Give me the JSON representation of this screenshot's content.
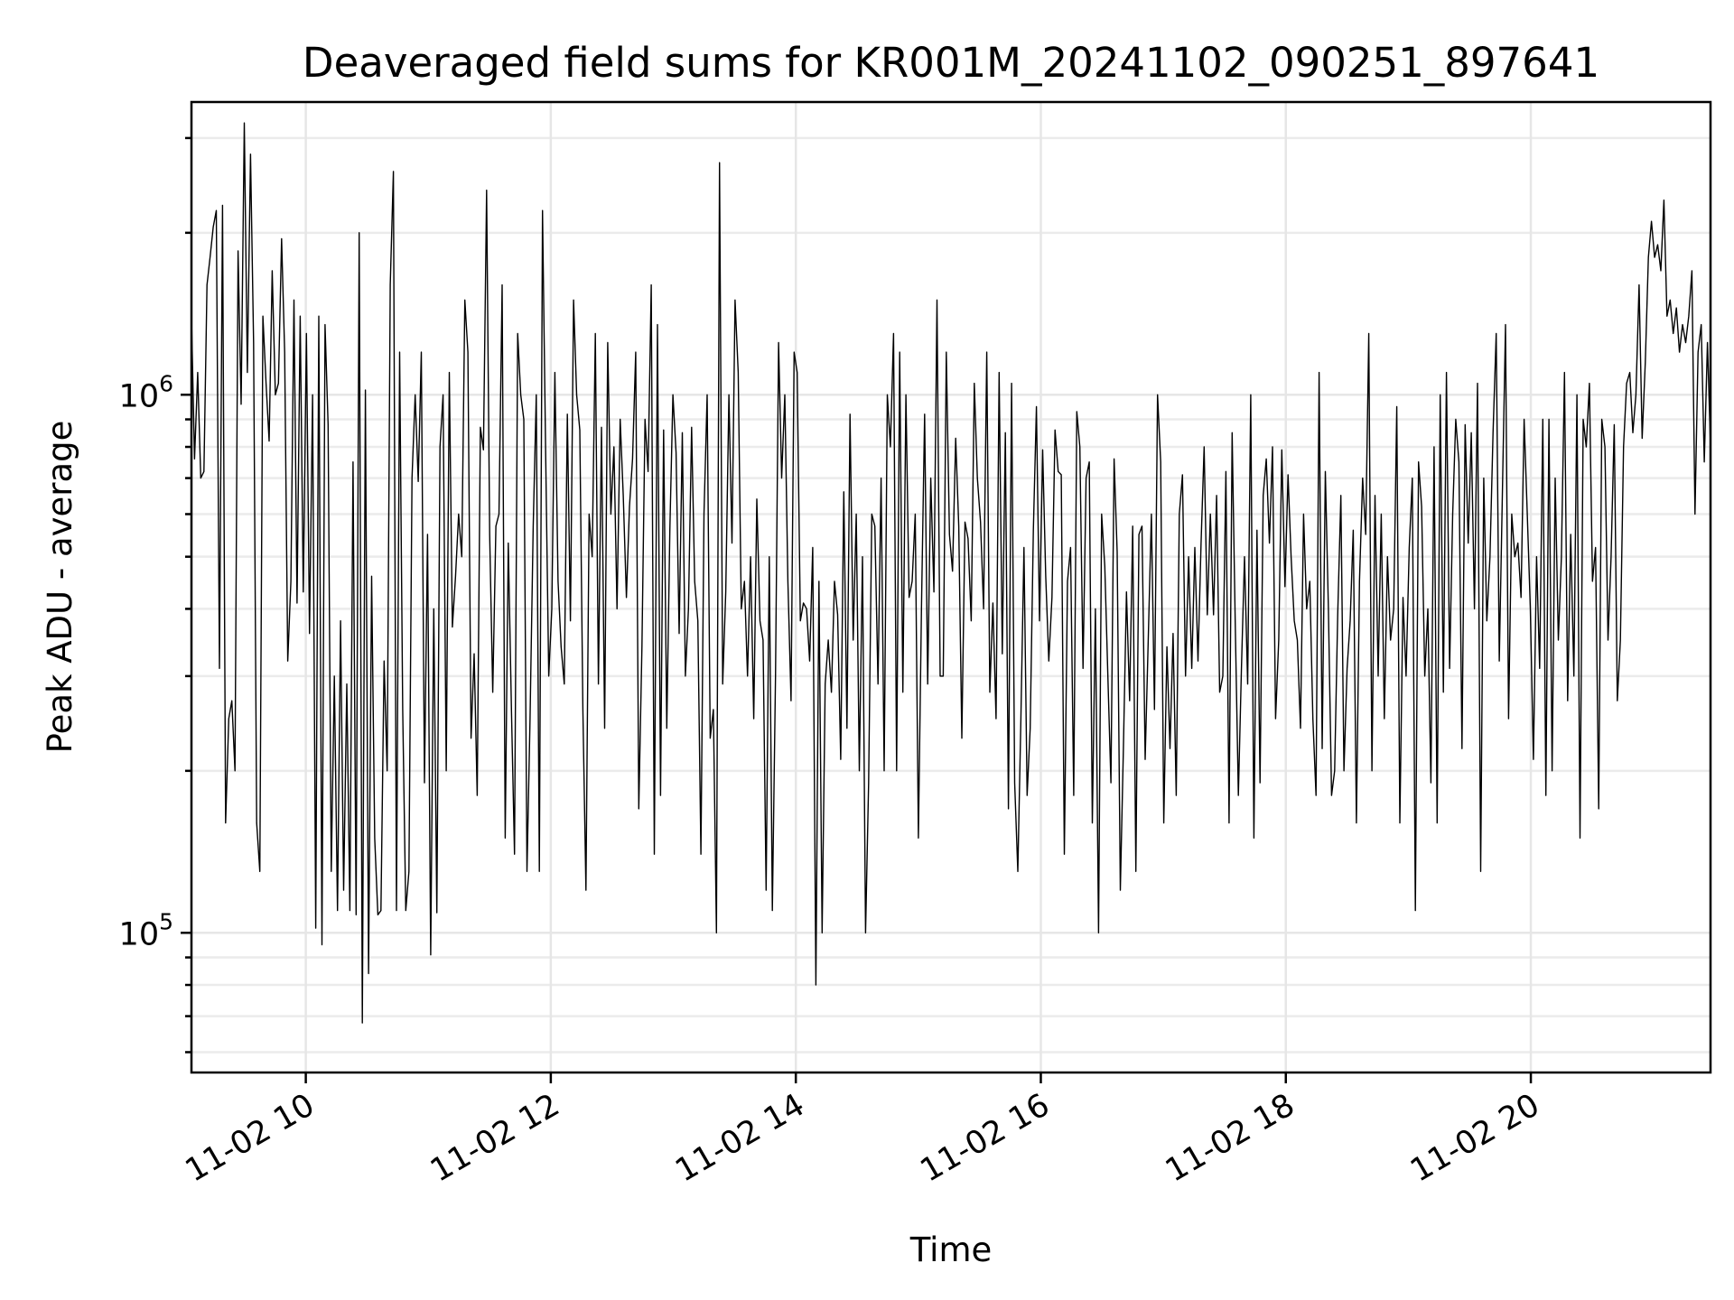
{
  "chart_data": {
    "type": "line",
    "title": "Deaveraged field sums for KR001M_20241102_090251_897641",
    "xlabel": "Time",
    "ylabel": "Peak ADU - average",
    "x_range": [
      "2024-11-02 09:04",
      "2024-11-02 21:28"
    ],
    "ylim": [
      55000,
      3500000
    ],
    "y_scale": "log",
    "grid": true,
    "x_ticks": [
      {
        "value": "2024-11-02 10:00",
        "label": "11-02 10"
      },
      {
        "value": "2024-11-02 12:00",
        "label": "11-02 12"
      },
      {
        "value": "2024-11-02 14:00",
        "label": "11-02 14"
      },
      {
        "value": "2024-11-02 16:00",
        "label": "11-02 16"
      },
      {
        "value": "2024-11-02 18:00",
        "label": "11-02 18"
      },
      {
        "value": "2024-11-02 20:00",
        "label": "11-02 20"
      }
    ],
    "y_ticks": [
      {
        "value": 100000,
        "base": "10",
        "exp": "5"
      },
      {
        "value": 1000000,
        "base": "10",
        "exp": "6"
      }
    ],
    "series": [
      {
        "color": "#000000",
        "start": "2024-11-02 09:04",
        "end": "2024-11-02 21:28",
        "values": [
          1400000,
          760000,
          1100000,
          700000,
          720000,
          1600000,
          1800000,
          2050000,
          2200000,
          310000,
          2250000,
          160000,
          250000,
          270000,
          200000,
          1850000,
          960000,
          3200000,
          1100000,
          2800000,
          1250000,
          160000,
          130000,
          1400000,
          1050000,
          820000,
          1700000,
          1000000,
          1050000,
          1950000,
          1200000,
          320000,
          450000,
          1500000,
          410000,
          1400000,
          430000,
          1300000,
          360000,
          1000000,
          102000,
          1400000,
          95000,
          1350000,
          880000,
          130000,
          300000,
          110000,
          380000,
          120000,
          290000,
          110000,
          750000,
          108000,
          2000000,
          68000,
          1020000,
          84000,
          460000,
          150000,
          108000,
          110000,
          320000,
          200000,
          1600000,
          2600000,
          110000,
          1200000,
          260000,
          110000,
          130000,
          700000,
          1000000,
          690000,
          1200000,
          190000,
          550000,
          91000,
          400000,
          109000,
          800000,
          1000000,
          200000,
          1100000,
          370000,
          460000,
          600000,
          500000,
          1500000,
          1200000,
          230000,
          330000,
          180000,
          870000,
          790000,
          2400000,
          550000,
          280000,
          570000,
          600000,
          1600000,
          150000,
          530000,
          260000,
          140000,
          1300000,
          1000000,
          900000,
          130000,
          250000,
          570000,
          1000000,
          130000,
          2200000,
          800000,
          300000,
          400000,
          1100000,
          450000,
          340000,
          290000,
          920000,
          380000,
          1500000,
          1000000,
          860000,
          260000,
          120000,
          600000,
          500000,
          1300000,
          290000,
          870000,
          240000,
          1250000,
          600000,
          800000,
          400000,
          900000,
          650000,
          420000,
          620000,
          760000,
          1200000,
          170000,
          340000,
          900000,
          720000,
          1600000,
          140000,
          1350000,
          180000,
          860000,
          240000,
          560000,
          1000000,
          780000,
          360000,
          850000,
          300000,
          400000,
          870000,
          450000,
          380000,
          140000,
          600000,
          1000000,
          230000,
          260000,
          100000,
          2700000,
          290000,
          430000,
          1000000,
          530000,
          1500000,
          1100000,
          400000,
          450000,
          300000,
          500000,
          250000,
          640000,
          380000,
          350000,
          120000,
          500000,
          110000,
          300000,
          1250000,
          700000,
          1000000,
          450000,
          270000,
          1200000,
          1100000,
          380000,
          410000,
          400000,
          320000,
          520000,
          80000,
          450000,
          100000,
          290000,
          350000,
          280000,
          450000,
          390000,
          210000,
          660000,
          240000,
          920000,
          350000,
          600000,
          200000,
          500000,
          100000,
          190000,
          600000,
          570000,
          290000,
          700000,
          200000,
          1000000,
          800000,
          1300000,
          200000,
          1200000,
          280000,
          1000000,
          420000,
          450000,
          600000,
          150000,
          400000,
          920000,
          290000,
          700000,
          430000,
          1500000,
          300000,
          300000,
          1200000,
          550000,
          470000,
          830000,
          570000,
          230000,
          580000,
          540000,
          380000,
          1050000,
          700000,
          580000,
          400000,
          1200000,
          280000,
          410000,
          250000,
          1100000,
          330000,
          850000,
          170000,
          1050000,
          190000,
          130000,
          250000,
          520000,
          180000,
          240000,
          560000,
          950000,
          380000,
          790000,
          460000,
          320000,
          420000,
          860000,
          720000,
          710000,
          140000,
          450000,
          520000,
          180000,
          930000,
          800000,
          310000,
          700000,
          750000,
          160000,
          400000,
          100000,
          600000,
          480000,
          300000,
          190000,
          760000,
          510000,
          120000,
          220000,
          430000,
          270000,
          570000,
          130000,
          550000,
          570000,
          210000,
          350000,
          600000,
          260000,
          1000000,
          750000,
          160000,
          340000,
          220000,
          360000,
          180000,
          600000,
          710000,
          300000,
          500000,
          310000,
          520000,
          320000,
          530000,
          800000,
          390000,
          600000,
          390000,
          650000,
          280000,
          300000,
          720000,
          160000,
          850000,
          380000,
          180000,
          310000,
          500000,
          290000,
          1000000,
          150000,
          560000,
          190000,
          650000,
          760000,
          530000,
          800000,
          250000,
          350000,
          790000,
          440000,
          710000,
          500000,
          380000,
          350000,
          240000,
          600000,
          400000,
          450000,
          250000,
          180000,
          1100000,
          220000,
          720000,
          400000,
          180000,
          200000,
          390000,
          650000,
          200000,
          310000,
          380000,
          560000,
          160000,
          450000,
          700000,
          550000,
          1300000,
          200000,
          650000,
          300000,
          600000,
          250000,
          500000,
          350000,
          400000,
          950000,
          160000,
          420000,
          300000,
          520000,
          700000,
          110000,
          750000,
          620000,
          300000,
          400000,
          190000,
          800000,
          160000,
          1000000,
          280000,
          1100000,
          310000,
          600000,
          900000,
          750000,
          220000,
          880000,
          530000,
          850000,
          400000,
          1050000,
          130000,
          700000,
          380000,
          500000,
          850000,
          1300000,
          320000,
          650000,
          1350000,
          250000,
          600000,
          500000,
          530000,
          420000,
          900000,
          600000,
          400000,
          210000,
          500000,
          310000,
          900000,
          180000,
          900000,
          200000,
          700000,
          350000,
          500000,
          1100000,
          270000,
          550000,
          300000,
          1000000,
          150000,
          900000,
          800000,
          1050000,
          450000,
          520000,
          170000,
          900000,
          800000,
          350000,
          500000,
          880000,
          270000,
          350000,
          800000,
          1050000,
          1100000,
          850000,
          1000000,
          1600000,
          830000,
          1150000,
          1800000,
          2100000,
          1800000,
          1900000,
          1700000,
          2300000,
          1400000,
          1500000,
          1300000,
          1450000,
          1200000,
          1350000,
          1250000,
          1400000,
          1700000,
          600000,
          1200000,
          1350000,
          750000,
          1250000,
          800000
        ]
      }
    ]
  }
}
